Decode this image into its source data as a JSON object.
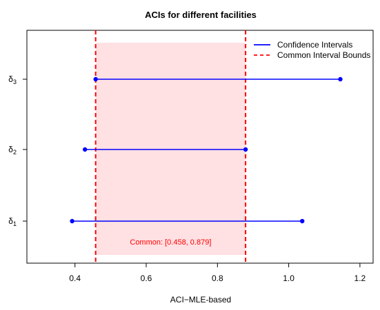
{
  "chart_data": {
    "type": "interval",
    "title": "ACIs for different facilities",
    "xlabel": "ACI−MLE-based",
    "ylabel": "",
    "xlim": [
      0.265,
      1.237
    ],
    "x_ticks": [
      "0.4",
      "0.6",
      "0.8",
      "1.0",
      "1.2"
    ],
    "x_tick_values": [
      0.4,
      0.6,
      0.8,
      1.0,
      1.2
    ],
    "categories": [
      {
        "sym": "δ",
        "sub": "1"
      },
      {
        "sym": "δ",
        "sub": "2"
      },
      {
        "sym": "δ",
        "sub": "3"
      }
    ],
    "intervals": [
      {
        "lower": 0.392,
        "upper": 1.038
      },
      {
        "lower": 0.428,
        "upper": 0.879
      },
      {
        "lower": 0.458,
        "upper": 1.145
      }
    ],
    "common_interval": {
      "lower": 0.458,
      "upper": 0.879
    },
    "annotation": "Common: [0.458, 0.879]",
    "legend": {
      "position": "top-right",
      "items": [
        {
          "label": "Confidence Intervals",
          "style": "solid",
          "color": "#0000ff"
        },
        {
          "label": "Common Interval Bounds",
          "style": "dashed",
          "color": "#ff0000"
        }
      ]
    },
    "colors": {
      "interval": "#0000ff",
      "bounds": "#ff0000",
      "shade": "#ffe0e3",
      "annotation": "#ff0000"
    },
    "grid": false
  }
}
